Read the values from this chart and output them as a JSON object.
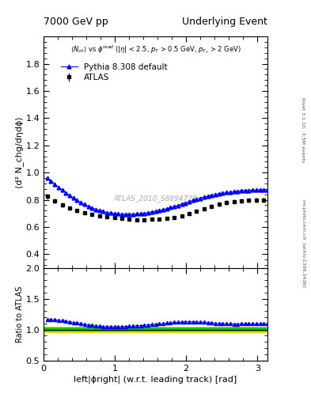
{
  "title_left": "7000 GeV pp",
  "title_right": "Underlying Event",
  "annotation": "ATLAS_2010_S8894728",
  "right_label_top": "Rivet 3.1.10,  3.5M events",
  "right_label_bottom": "mcplots.cern.ch  [arXiv:1306.3436]",
  "xlabel": "left|ϕright| (w.r.t. leading track) [rad]",
  "ylabel_main": "⟨d² N_chg/dηdϕ⟩",
  "ylabel_ratio": "Ratio to ATLAS",
  "legend_atlas": "ATLAS",
  "legend_pythia": "Pythia 8.308 default",
  "xlim": [
    0,
    3.14159
  ],
  "ylim_main": [
    0.3,
    2.0
  ],
  "ylim_ratio": [
    0.5,
    2.0
  ],
  "yticks_main": [
    0.4,
    0.6,
    0.8,
    1.0,
    1.2,
    1.4,
    1.6,
    1.8
  ],
  "yticks_ratio": [
    0.5,
    1.0,
    1.5,
    2.0
  ],
  "atlas_color": "black",
  "pythia_color": "#0000ff",
  "atlas_x": [
    0.0524,
    0.1571,
    0.2618,
    0.3665,
    0.4712,
    0.576,
    0.6807,
    0.7854,
    0.8901,
    0.9948,
    1.0996,
    1.2043,
    1.309,
    1.4137,
    1.5184,
    1.6231,
    1.7279,
    1.8326,
    1.9373,
    2.042,
    2.1468,
    2.2515,
    2.3562,
    2.4609,
    2.5656,
    2.6704,
    2.7751,
    2.8798,
    2.9845,
    3.0892
  ],
  "atlas_y": [
    0.825,
    0.79,
    0.76,
    0.738,
    0.72,
    0.705,
    0.693,
    0.683,
    0.675,
    0.668,
    0.662,
    0.658,
    0.655,
    0.655,
    0.657,
    0.66,
    0.665,
    0.672,
    0.683,
    0.698,
    0.715,
    0.733,
    0.752,
    0.768,
    0.779,
    0.788,
    0.793,
    0.795,
    0.797,
    0.8
  ],
  "atlas_yerr": [
    0.02,
    0.018,
    0.016,
    0.015,
    0.014,
    0.013,
    0.012,
    0.012,
    0.011,
    0.011,
    0.011,
    0.01,
    0.01,
    0.01,
    0.01,
    0.01,
    0.01,
    0.011,
    0.011,
    0.012,
    0.012,
    0.013,
    0.014,
    0.015,
    0.016,
    0.016,
    0.017,
    0.017,
    0.018,
    0.018
  ],
  "pythia_x": [
    0.0524,
    0.1047,
    0.1571,
    0.2094,
    0.2618,
    0.3142,
    0.3665,
    0.4189,
    0.4712,
    0.5236,
    0.576,
    0.6283,
    0.6807,
    0.733,
    0.7854,
    0.8378,
    0.8901,
    0.9425,
    0.9948,
    1.0472,
    1.0996,
    1.1519,
    1.2043,
    1.2566,
    1.309,
    1.3614,
    1.4137,
    1.4661,
    1.5184,
    1.5708,
    1.6231,
    1.6755,
    1.7279,
    1.7802,
    1.8326,
    1.885,
    1.9373,
    1.9897,
    2.042,
    2.0944,
    2.1468,
    2.1991,
    2.2515,
    2.3038,
    2.3562,
    2.4086,
    2.4609,
    2.5133,
    2.5656,
    2.618,
    2.6704,
    2.7227,
    2.7751,
    2.8274,
    2.8798,
    2.9322,
    2.9845,
    3.0369,
    3.0892,
    3.1416
  ],
  "pythia_y": [
    0.96,
    0.94,
    0.915,
    0.893,
    0.871,
    0.851,
    0.832,
    0.814,
    0.797,
    0.781,
    0.766,
    0.753,
    0.741,
    0.73,
    0.721,
    0.714,
    0.707,
    0.703,
    0.699,
    0.696,
    0.695,
    0.694,
    0.694,
    0.695,
    0.696,
    0.698,
    0.701,
    0.705,
    0.71,
    0.715,
    0.721,
    0.728,
    0.735,
    0.743,
    0.751,
    0.759,
    0.768,
    0.777,
    0.786,
    0.795,
    0.804,
    0.812,
    0.82,
    0.827,
    0.833,
    0.839,
    0.844,
    0.849,
    0.853,
    0.857,
    0.86,
    0.863,
    0.866,
    0.868,
    0.87,
    0.871,
    0.872,
    0.873,
    0.874,
    0.875
  ],
  "ratio_band_inner_low": 0.97,
  "ratio_band_inner_high": 1.03,
  "ratio_band_outer_low": 0.95,
  "ratio_band_outer_high": 1.05
}
